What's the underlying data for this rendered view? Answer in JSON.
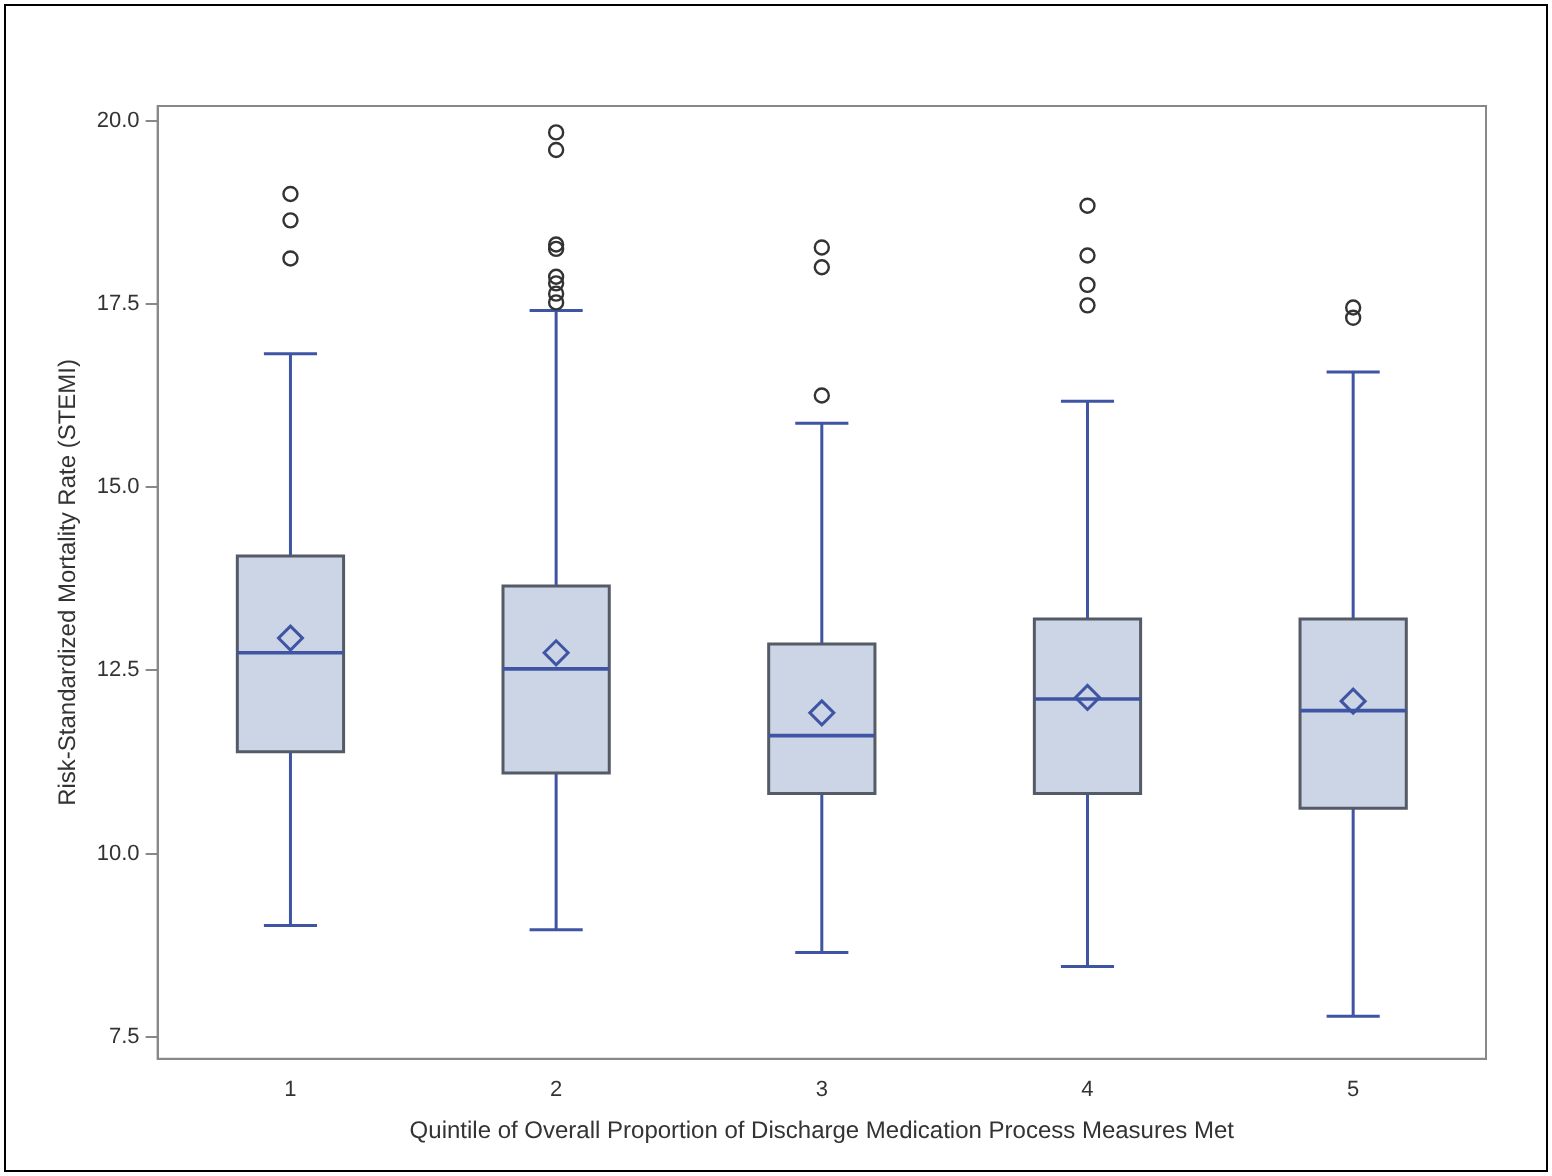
{
  "chart_data": {
    "type": "box",
    "xlabel": "Quintile of Overall Proportion of Discharge Medication Process Measures Met",
    "ylabel": "Risk-Standardized Mortality Rate (STEMI)",
    "categories": [
      "1",
      "2",
      "3",
      "4",
      "5"
    ],
    "color": "#cbd5e6",
    "marker": "diamond",
    "boxes": [
      {
        "low": 9.02,
        "q1": 11.39,
        "median": 12.74,
        "q3": 14.06,
        "high": 16.82,
        "mean": 12.94,
        "outliers": [
          18.12,
          18.64,
          19.0
        ]
      },
      {
        "low": 8.96,
        "q1": 11.1,
        "median": 12.52,
        "q3": 13.65,
        "high": 17.41,
        "mean": 12.74,
        "outliers": [
          17.52,
          17.64,
          17.78,
          17.87,
          18.25,
          18.31,
          19.6,
          19.84
        ]
      },
      {
        "low": 8.65,
        "q1": 10.82,
        "median": 11.61,
        "q3": 12.86,
        "high": 15.87,
        "mean": 11.92,
        "outliers": [
          16.25,
          18.0,
          18.27
        ]
      },
      {
        "low": 8.46,
        "q1": 10.82,
        "median": 12.11,
        "q3": 13.2,
        "high": 16.17,
        "mean": 12.13,
        "outliers": [
          17.48,
          17.76,
          18.16,
          18.84
        ]
      },
      {
        "low": 7.78,
        "q1": 10.62,
        "median": 11.95,
        "q3": 13.2,
        "high": 16.57,
        "mean": 12.08,
        "outliers": [
          17.31,
          17.45
        ]
      }
    ],
    "ylim": [
      7.2,
      20.2
    ],
    "yticks": [
      {
        "value": 7.5,
        "label": "7.5"
      },
      {
        "value": 10,
        "label": "10.0"
      },
      {
        "value": 12.5,
        "label": "12.5"
      },
      {
        "value": 15,
        "label": "15.0"
      },
      {
        "value": 17.5,
        "label": "17.5"
      },
      {
        "value": 20,
        "label": "20.0"
      }
    ]
  }
}
